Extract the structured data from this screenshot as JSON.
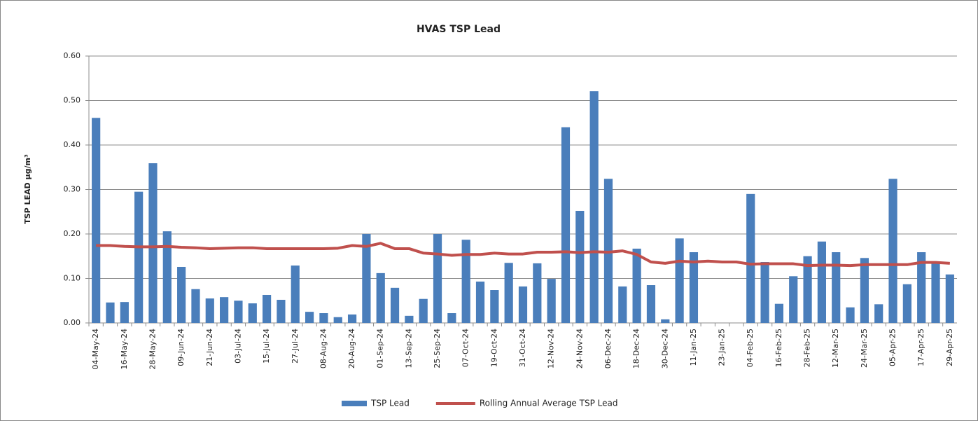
{
  "chart_data": {
    "type": "bar",
    "title": "HVAS TSP Lead",
    "y_label": "TSP LEAD µg/m³",
    "categories": [
      "04-May-24",
      null,
      "16-May-24",
      null,
      "28-May-24",
      null,
      "09-Jun-24",
      null,
      "21-Jun-24",
      null,
      "03-Jul-24",
      null,
      "15-Jul-24",
      null,
      "27-Jul-24",
      null,
      "08-Aug-24",
      null,
      "20-Aug-24",
      null,
      "01-Sep-24",
      null,
      "13-Sep-24",
      null,
      "25-Sep-24",
      null,
      "07-Oct-24",
      null,
      "19-Oct-24",
      null,
      "31-Oct-24",
      null,
      "12-Nov-24",
      null,
      "24-Nov-24",
      null,
      "06-Dec-24",
      null,
      "18-Dec-24",
      null,
      "30-Dec-24",
      null,
      "11-Jan-25",
      null,
      "23-Jan-25",
      null,
      "04-Feb-25",
      null,
      "16-Feb-25",
      null,
      "28-Feb-25",
      null,
      "12-Mar-25",
      null,
      "24-Mar-25",
      null,
      "05-Apr-25",
      null,
      "17-Apr-25",
      null,
      "29-Apr-25"
    ],
    "series": [
      {
        "name": "TSP Lead",
        "type": "bar",
        "color": "#4a7ebb",
        "values": [
          0.461,
          0.046,
          0.047,
          0.295,
          0.359,
          0.206,
          0.126,
          0.076,
          0.055,
          0.058,
          0.05,
          0.044,
          0.063,
          0.052,
          0.129,
          0.025,
          0.022,
          0.013,
          0.019,
          0.2,
          0.112,
          0.079,
          0.016,
          0.054,
          0.2,
          0.022,
          0.187,
          0.093,
          0.074,
          0.135,
          0.082,
          0.134,
          0.099,
          0.44,
          0.252,
          0.521,
          0.324,
          0.082,
          0.167,
          0.085,
          0.008,
          0.19,
          0.159,
          null,
          null,
          null,
          0.29,
          0.137,
          0.043,
          0.105,
          0.15,
          0.183,
          0.159,
          0.035,
          0.146,
          0.042,
          0.324,
          0.087,
          0.159,
          0.135,
          0.109
        ]
      },
      {
        "name": "Rolling Annual Average TSP Lead",
        "type": "line",
        "color": "#c0504d",
        "values": [
          0.174,
          0.174,
          0.172,
          0.171,
          0.171,
          0.172,
          0.17,
          0.169,
          0.167,
          0.168,
          0.169,
          0.169,
          0.167,
          0.167,
          0.167,
          0.167,
          0.167,
          0.168,
          0.174,
          0.172,
          0.179,
          0.167,
          0.167,
          0.157,
          0.155,
          0.152,
          0.154,
          0.154,
          0.157,
          0.155,
          0.155,
          0.159,
          0.159,
          0.16,
          0.158,
          0.16,
          0.159,
          0.162,
          0.154,
          0.137,
          0.134,
          0.139,
          0.137,
          0.139,
          0.137,
          0.137,
          0.132,
          0.133,
          0.133,
          0.133,
          0.129,
          0.13,
          0.13,
          0.129,
          0.131,
          0.131,
          0.131,
          0.131,
          0.136,
          0.136,
          0.134
        ]
      }
    ],
    "ylim": [
      0,
      0.6
    ],
    "yticks": [
      {
        "value": 0,
        "label": "0.00"
      },
      {
        "value": 0.1,
        "label": "0.10"
      },
      {
        "value": 0.2,
        "label": "0.20"
      },
      {
        "value": 0.3,
        "label": "0.30"
      },
      {
        "value": 0.4,
        "label": "0.40"
      },
      {
        "value": 0.5,
        "label": "0.50"
      },
      {
        "value": 0.6,
        "label": "0.60"
      }
    ],
    "grid": true,
    "legend": "bottom"
  }
}
